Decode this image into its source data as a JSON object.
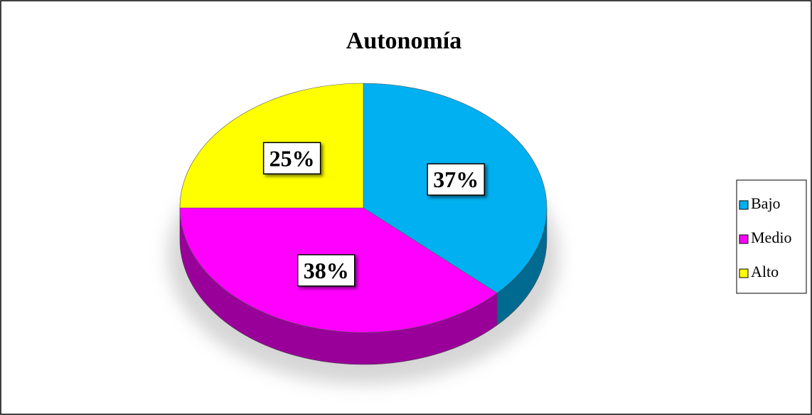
{
  "chart_data": {
    "type": "pie",
    "title": "Autonomía",
    "categories": [
      "Bajo",
      "Medio",
      "Alto"
    ],
    "values": [
      37,
      38,
      25
    ],
    "value_labels": [
      "37%",
      "38%",
      "25%"
    ],
    "colors": [
      "#00b0f0",
      "#ff00ff",
      "#ffff00"
    ],
    "legend": "right"
  }
}
